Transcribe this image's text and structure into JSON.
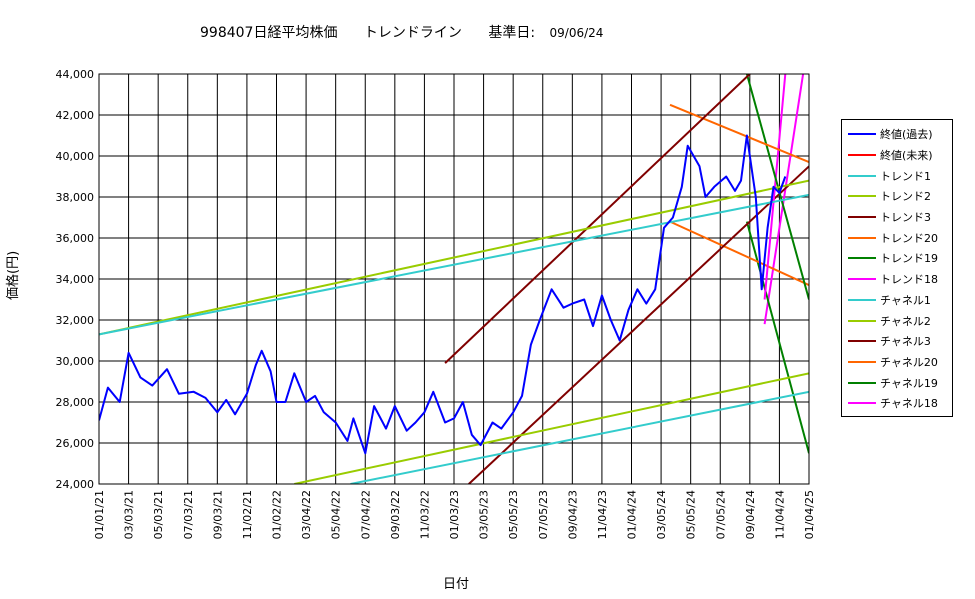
{
  "header": {
    "title_main": "998407日経平均株価",
    "title_trend": "トレンドライン",
    "title_base": "基準日:",
    "title_date": "09/06/24"
  },
  "chart_data": {
    "type": "line",
    "title": "998407日経平均株価　トレンドライン　基準日: 09/06/24",
    "xlabel": "日付",
    "ylabel": "価格(円)",
    "ylim": [
      24000,
      44000
    ],
    "y_ticks": [
      "24,000",
      "26,000",
      "28,000",
      "30,000",
      "32,000",
      "34,000",
      "36,000",
      "38,000",
      "40,000",
      "42,000",
      "44,000"
    ],
    "x_tick_labels": [
      "01/01/21",
      "03/03/21",
      "05/03/21",
      "07/03/21",
      "09/03/21",
      "11/02/21",
      "01/02/22",
      "03/04/22",
      "05/04/22",
      "07/04/22",
      "09/03/22",
      "11/03/22",
      "01/03/23",
      "03/05/23",
      "05/05/23",
      "07/05/23",
      "09/04/23",
      "11/04/23",
      "01/04/24",
      "03/05/24",
      "05/05/24",
      "07/05/24",
      "09/04/24",
      "11/04/24",
      "01/04/25"
    ],
    "grid": true,
    "legend_position": "right",
    "series": [
      {
        "name": "終値(過去)",
        "color": "#0000FF",
        "kind": "price",
        "points": [
          [
            0,
            27100
          ],
          [
            0.3,
            28700
          ],
          [
            0.7,
            28000
          ],
          [
            1,
            30400
          ],
          [
            1.4,
            29200
          ],
          [
            1.8,
            28800
          ],
          [
            2.3,
            29600
          ],
          [
            2.7,
            28400
          ],
          [
            3.2,
            28500
          ],
          [
            3.6,
            28200
          ],
          [
            4,
            27500
          ],
          [
            4.3,
            28100
          ],
          [
            4.6,
            27400
          ],
          [
            5,
            28400
          ],
          [
            5.3,
            29800
          ],
          [
            5.5,
            30500
          ],
          [
            5.8,
            29500
          ],
          [
            6,
            28000
          ],
          [
            6.3,
            28000
          ],
          [
            6.6,
            29400
          ],
          [
            7,
            28000
          ],
          [
            7.3,
            28300
          ],
          [
            7.6,
            27500
          ],
          [
            8,
            27000
          ],
          [
            8.4,
            26100
          ],
          [
            8.6,
            27200
          ],
          [
            9,
            25500
          ],
          [
            9.3,
            27800
          ],
          [
            9.7,
            26700
          ],
          [
            10,
            27800
          ],
          [
            10.4,
            26600
          ],
          [
            10.7,
            27000
          ],
          [
            11,
            27500
          ],
          [
            11.3,
            28500
          ],
          [
            11.7,
            27000
          ],
          [
            12,
            27200
          ],
          [
            12.3,
            28000
          ],
          [
            12.6,
            26400
          ],
          [
            12.9,
            25900
          ],
          [
            13.3,
            27000
          ],
          [
            13.6,
            26700
          ],
          [
            14,
            27500
          ],
          [
            14.3,
            28300
          ],
          [
            14.6,
            30800
          ],
          [
            14.9,
            32000
          ],
          [
            15.3,
            33500
          ],
          [
            15.7,
            32600
          ],
          [
            16,
            32800
          ],
          [
            16.4,
            33000
          ],
          [
            16.7,
            31700
          ],
          [
            17,
            33200
          ],
          [
            17.3,
            32000
          ],
          [
            17.6,
            31000
          ],
          [
            17.9,
            32500
          ],
          [
            18.2,
            33500
          ],
          [
            18.5,
            32800
          ],
          [
            18.8,
            33500
          ],
          [
            19.1,
            36500
          ],
          [
            19.4,
            37000
          ],
          [
            19.7,
            38500
          ],
          [
            19.9,
            40500
          ],
          [
            20.3,
            39500
          ],
          [
            20.5,
            38000
          ],
          [
            20.8,
            38500
          ],
          [
            21.2,
            39000
          ],
          [
            21.5,
            38300
          ],
          [
            21.7,
            38800
          ],
          [
            21.9,
            41000
          ],
          [
            22.1,
            39000
          ],
          [
            22.2,
            38000
          ],
          [
            22.4,
            33500
          ],
          [
            22.6,
            36500
          ],
          [
            22.8,
            38500
          ],
          [
            23,
            38200
          ],
          [
            23.2,
            39000
          ]
        ]
      },
      {
        "name": "終値(未来)",
        "color": "#FF0000",
        "kind": "line",
        "points": []
      },
      {
        "name": "トレンド1",
        "color": "#33CCCC",
        "kind": "line",
        "points": [
          [
            0,
            31300
          ],
          [
            24,
            38100
          ]
        ]
      },
      {
        "name": "トレンド2",
        "color": "#99CC00",
        "kind": "line",
        "points": [
          [
            0,
            31300
          ],
          [
            24,
            38800
          ]
        ]
      },
      {
        "name": "トレンド3",
        "color": "#800000",
        "kind": "line",
        "points": [
          [
            11.7,
            29900
          ],
          [
            22,
            44000
          ]
        ]
      },
      {
        "name": "トレンド20",
        "color": "#FF6600",
        "kind": "line",
        "points": [
          [
            19.3,
            42500
          ],
          [
            24,
            39700
          ]
        ]
      },
      {
        "name": "トレンド19",
        "color": "#008000",
        "kind": "line",
        "points": [
          [
            21.9,
            44000
          ],
          [
            24,
            33000
          ]
        ]
      },
      {
        "name": "トレンド18",
        "color": "#FF00FF",
        "kind": "line",
        "points": [
          [
            22.5,
            33000
          ],
          [
            23.2,
            44000
          ]
        ]
      },
      {
        "name": "チャネル1",
        "color": "#33CCCC",
        "kind": "line",
        "points": [
          [
            8.5,
            24000
          ],
          [
            24,
            28500
          ]
        ]
      },
      {
        "name": "チャネル2",
        "color": "#99CC00",
        "kind": "line",
        "points": [
          [
            6.6,
            24000
          ],
          [
            24,
            29400
          ]
        ]
      },
      {
        "name": "チャネル3",
        "color": "#800000",
        "kind": "line",
        "points": [
          [
            12.5,
            24000
          ],
          [
            24,
            39500
          ]
        ]
      },
      {
        "name": "チャネル20",
        "color": "#FF6600",
        "kind": "line",
        "points": [
          [
            19.3,
            36800
          ],
          [
            24,
            33700
          ]
        ]
      },
      {
        "name": "チャネル19",
        "color": "#008000",
        "kind": "line",
        "points": [
          [
            21.9,
            36800
          ],
          [
            24,
            25500
          ]
        ]
      },
      {
        "name": "チャネル18",
        "color": "#FF00FF",
        "kind": "line",
        "points": [
          [
            22.5,
            31800
          ],
          [
            23.8,
            44000
          ]
        ]
      }
    ]
  }
}
